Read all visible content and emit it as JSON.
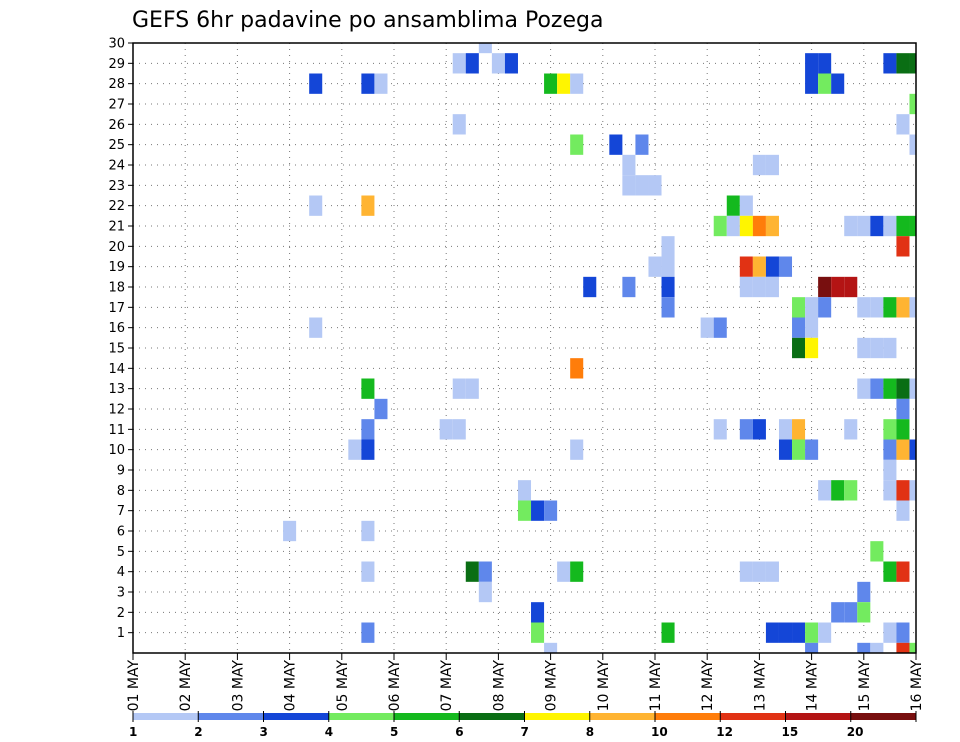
{
  "chart_data": {
    "type": "heatmap",
    "title": "GEFS 6hr padavine po ansamblima Pozega",
    "x_labels": [
      "01 MAY",
      "02 MAY",
      "03 MAY",
      "04 MAY",
      "05 MAY",
      "06 MAY",
      "07 MAY",
      "08 MAY",
      "09 MAY",
      "10 MAY",
      "11 MAY",
      "12 MAY",
      "13 MAY",
      "14 MAY",
      "15 MAY",
      "16 MAY"
    ],
    "y_labels": [
      "1",
      "2",
      "3",
      "4",
      "5",
      "6",
      "7",
      "8",
      "9",
      "10",
      "11",
      "12",
      "13",
      "14",
      "15",
      "16",
      "17",
      "18",
      "19",
      "20",
      "21",
      "22",
      "23",
      "24",
      "25",
      "26",
      "27",
      "28",
      "29",
      "30"
    ],
    "x_range_hours": [
      0,
      360
    ],
    "y_range": [
      0,
      30
    ],
    "grid": true,
    "legend": {
      "placement": "bottom",
      "labels": [
        "1",
        "2",
        "3",
        "4",
        "5",
        "6",
        "7",
        "8",
        "10",
        "12",
        "15",
        "20"
      ],
      "colors": [
        "#b4c8f5",
        "#5f87eb",
        "#1446d7",
        "#73eb5f",
        "#14b91e",
        "#0a6e14",
        "#fff500",
        "#ffb432",
        "#ff7d0a",
        "#e13214",
        "#b41414",
        "#780f0f"
      ]
    },
    "cells": [
      {
        "member": 30,
        "hours": 162,
        "level": 0
      },
      {
        "member": 29,
        "hours": 150,
        "level": 0
      },
      {
        "member": 29,
        "hours": 156,
        "level": 2
      },
      {
        "member": 29,
        "hours": 168,
        "level": 0
      },
      {
        "member": 29,
        "hours": 174,
        "level": 2
      },
      {
        "member": 29,
        "hours": 312,
        "level": 2
      },
      {
        "member": 29,
        "hours": 318,
        "level": 2
      },
      {
        "member": 29,
        "hours": 348,
        "level": 2
      },
      {
        "member": 29,
        "hours": 354,
        "level": 5
      },
      {
        "member": 29,
        "hours": 360,
        "level": 5
      },
      {
        "member": 28,
        "hours": 84,
        "level": 2
      },
      {
        "member": 28,
        "hours": 108,
        "level": 2
      },
      {
        "member": 28,
        "hours": 114,
        "level": 0
      },
      {
        "member": 28,
        "hours": 192,
        "level": 4
      },
      {
        "member": 28,
        "hours": 198,
        "level": 6
      },
      {
        "member": 28,
        "hours": 204,
        "level": 0
      },
      {
        "member": 28,
        "hours": 312,
        "level": 2
      },
      {
        "member": 28,
        "hours": 318,
        "level": 3
      },
      {
        "member": 28,
        "hours": 324,
        "level": 2
      },
      {
        "member": 27,
        "hours": 360,
        "level": 3
      },
      {
        "member": 26,
        "hours": 150,
        "level": 0
      },
      {
        "member": 26,
        "hours": 354,
        "level": 0
      },
      {
        "member": 25,
        "hours": 204,
        "level": 3
      },
      {
        "member": 25,
        "hours": 222,
        "level": 2
      },
      {
        "member": 25,
        "hours": 234,
        "level": 1
      },
      {
        "member": 25,
        "hours": 360,
        "level": 0
      },
      {
        "member": 24,
        "hours": 228,
        "level": 0
      },
      {
        "member": 24,
        "hours": 288,
        "level": 0
      },
      {
        "member": 24,
        "hours": 294,
        "level": 0
      },
      {
        "member": 23,
        "hours": 228,
        "level": 0
      },
      {
        "member": 23,
        "hours": 234,
        "level": 0
      },
      {
        "member": 23,
        "hours": 240,
        "level": 0
      },
      {
        "member": 22,
        "hours": 84,
        "level": 0
      },
      {
        "member": 22,
        "hours": 108,
        "level": 7
      },
      {
        "member": 22,
        "hours": 276,
        "level": 4
      },
      {
        "member": 22,
        "hours": 282,
        "level": 0
      },
      {
        "member": 21,
        "hours": 270,
        "level": 3
      },
      {
        "member": 21,
        "hours": 276,
        "level": 0
      },
      {
        "member": 21,
        "hours": 282,
        "level": 6
      },
      {
        "member": 21,
        "hours": 288,
        "level": 8
      },
      {
        "member": 21,
        "hours": 294,
        "level": 7
      },
      {
        "member": 21,
        "hours": 330,
        "level": 0
      },
      {
        "member": 21,
        "hours": 336,
        "level": 0
      },
      {
        "member": 21,
        "hours": 342,
        "level": 2
      },
      {
        "member": 21,
        "hours": 348,
        "level": 0
      },
      {
        "member": 21,
        "hours": 354,
        "level": 4
      },
      {
        "member": 21,
        "hours": 360,
        "level": 4
      },
      {
        "member": 20,
        "hours": 246,
        "level": 0
      },
      {
        "member": 20,
        "hours": 354,
        "level": 9
      },
      {
        "member": 19,
        "hours": 240,
        "level": 0
      },
      {
        "member": 19,
        "hours": 246,
        "level": 0
      },
      {
        "member": 19,
        "hours": 282,
        "level": 9
      },
      {
        "member": 19,
        "hours": 288,
        "level": 7
      },
      {
        "member": 19,
        "hours": 294,
        "level": 2
      },
      {
        "member": 19,
        "hours": 300,
        "level": 1
      },
      {
        "member": 18,
        "hours": 210,
        "level": 2
      },
      {
        "member": 18,
        "hours": 228,
        "level": 1
      },
      {
        "member": 18,
        "hours": 246,
        "level": 2
      },
      {
        "member": 18,
        "hours": 282,
        "level": 0
      },
      {
        "member": 18,
        "hours": 288,
        "level": 0
      },
      {
        "member": 18,
        "hours": 294,
        "level": 0
      },
      {
        "member": 18,
        "hours": 318,
        "level": 11
      },
      {
        "member": 18,
        "hours": 324,
        "level": 10
      },
      {
        "member": 18,
        "hours": 330,
        "level": 10
      },
      {
        "member": 17,
        "hours": 246,
        "level": 1
      },
      {
        "member": 17,
        "hours": 306,
        "level": 3
      },
      {
        "member": 17,
        "hours": 312,
        "level": 0
      },
      {
        "member": 17,
        "hours": 318,
        "level": 1
      },
      {
        "member": 17,
        "hours": 336,
        "level": 0
      },
      {
        "member": 17,
        "hours": 342,
        "level": 0
      },
      {
        "member": 17,
        "hours": 348,
        "level": 4
      },
      {
        "member": 17,
        "hours": 354,
        "level": 7
      },
      {
        "member": 17,
        "hours": 360,
        "level": 0
      },
      {
        "member": 16,
        "hours": 84,
        "level": 0
      },
      {
        "member": 16,
        "hours": 264,
        "level": 0
      },
      {
        "member": 16,
        "hours": 270,
        "level": 1
      },
      {
        "member": 16,
        "hours": 306,
        "level": 1
      },
      {
        "member": 16,
        "hours": 312,
        "level": 0
      },
      {
        "member": 15,
        "hours": 306,
        "level": 5
      },
      {
        "member": 15,
        "hours": 312,
        "level": 6
      },
      {
        "member": 15,
        "hours": 336,
        "level": 0
      },
      {
        "member": 15,
        "hours": 342,
        "level": 0
      },
      {
        "member": 15,
        "hours": 348,
        "level": 0
      },
      {
        "member": 14,
        "hours": 204,
        "level": 8
      },
      {
        "member": 13,
        "hours": 108,
        "level": 4
      },
      {
        "member": 13,
        "hours": 150,
        "level": 0
      },
      {
        "member": 13,
        "hours": 156,
        "level": 0
      },
      {
        "member": 13,
        "hours": 336,
        "level": 0
      },
      {
        "member": 13,
        "hours": 342,
        "level": 1
      },
      {
        "member": 13,
        "hours": 348,
        "level": 4
      },
      {
        "member": 13,
        "hours": 354,
        "level": 5
      },
      {
        "member": 13,
        "hours": 360,
        "level": 0
      },
      {
        "member": 12,
        "hours": 114,
        "level": 1
      },
      {
        "member": 12,
        "hours": 354,
        "level": 1
      },
      {
        "member": 11,
        "hours": 108,
        "level": 1
      },
      {
        "member": 11,
        "hours": 144,
        "level": 0
      },
      {
        "member": 11,
        "hours": 150,
        "level": 0
      },
      {
        "member": 11,
        "hours": 270,
        "level": 0
      },
      {
        "member": 11,
        "hours": 282,
        "level": 1
      },
      {
        "member": 11,
        "hours": 288,
        "level": 2
      },
      {
        "member": 11,
        "hours": 300,
        "level": 0
      },
      {
        "member": 11,
        "hours": 306,
        "level": 7
      },
      {
        "member": 11,
        "hours": 330,
        "level": 0
      },
      {
        "member": 11,
        "hours": 348,
        "level": 3
      },
      {
        "member": 11,
        "hours": 354,
        "level": 4
      },
      {
        "member": 10,
        "hours": 102,
        "level": 0
      },
      {
        "member": 10,
        "hours": 108,
        "level": 2
      },
      {
        "member": 10,
        "hours": 204,
        "level": 0
      },
      {
        "member": 10,
        "hours": 300,
        "level": 2
      },
      {
        "member": 10,
        "hours": 306,
        "level": 3
      },
      {
        "member": 10,
        "hours": 312,
        "level": 1
      },
      {
        "member": 10,
        "hours": 348,
        "level": 1
      },
      {
        "member": 10,
        "hours": 354,
        "level": 7
      },
      {
        "member": 10,
        "hours": 360,
        "level": 2
      },
      {
        "member": 9,
        "hours": 348,
        "level": 0
      },
      {
        "member": 8,
        "hours": 180,
        "level": 0
      },
      {
        "member": 8,
        "hours": 318,
        "level": 0
      },
      {
        "member": 8,
        "hours": 324,
        "level": 4
      },
      {
        "member": 8,
        "hours": 330,
        "level": 3
      },
      {
        "member": 8,
        "hours": 348,
        "level": 0
      },
      {
        "member": 8,
        "hours": 354,
        "level": 9
      },
      {
        "member": 8,
        "hours": 360,
        "level": 0
      },
      {
        "member": 7,
        "hours": 180,
        "level": 3
      },
      {
        "member": 7,
        "hours": 186,
        "level": 2
      },
      {
        "member": 7,
        "hours": 192,
        "level": 1
      },
      {
        "member": 7,
        "hours": 354,
        "level": 0
      },
      {
        "member": 6,
        "hours": 72,
        "level": 0
      },
      {
        "member": 6,
        "hours": 108,
        "level": 0
      },
      {
        "member": 5,
        "hours": 342,
        "level": 3
      },
      {
        "member": 4,
        "hours": 108,
        "level": 0
      },
      {
        "member": 4,
        "hours": 156,
        "level": 5
      },
      {
        "member": 4,
        "hours": 162,
        "level": 1
      },
      {
        "member": 4,
        "hours": 198,
        "level": 0
      },
      {
        "member": 4,
        "hours": 204,
        "level": 4
      },
      {
        "member": 4,
        "hours": 282,
        "level": 0
      },
      {
        "member": 4,
        "hours": 288,
        "level": 0
      },
      {
        "member": 4,
        "hours": 294,
        "level": 0
      },
      {
        "member": 4,
        "hours": 348,
        "level": 4
      },
      {
        "member": 4,
        "hours": 354,
        "level": 9
      },
      {
        "member": 3,
        "hours": 162,
        "level": 0
      },
      {
        "member": 3,
        "hours": 336,
        "level": 1
      },
      {
        "member": 2,
        "hours": 186,
        "level": 2
      },
      {
        "member": 2,
        "hours": 324,
        "level": 1
      },
      {
        "member": 2,
        "hours": 330,
        "level": 1
      },
      {
        "member": 2,
        "hours": 336,
        "level": 3
      },
      {
        "member": 1,
        "hours": 108,
        "level": 1
      },
      {
        "member": 1,
        "hours": 186,
        "level": 3
      },
      {
        "member": 1,
        "hours": 246,
        "level": 4
      },
      {
        "member": 1,
        "hours": 294,
        "level": 2
      },
      {
        "member": 1,
        "hours": 300,
        "level": 2
      },
      {
        "member": 1,
        "hours": 306,
        "level": 2
      },
      {
        "member": 1,
        "hours": 312,
        "level": 3
      },
      {
        "member": 1,
        "hours": 318,
        "level": 0
      },
      {
        "member": 1,
        "hours": 348,
        "level": 0
      },
      {
        "member": 1,
        "hours": 354,
        "level": 1
      },
      {
        "member": 0,
        "hours": 192,
        "level": 0
      },
      {
        "member": 0,
        "hours": 312,
        "level": 1
      },
      {
        "member": 0,
        "hours": 336,
        "level": 1
      },
      {
        "member": 0,
        "hours": 342,
        "level": 0
      },
      {
        "member": 0,
        "hours": 354,
        "level": 9
      },
      {
        "member": 0,
        "hours": 360,
        "level": 3
      }
    ]
  }
}
